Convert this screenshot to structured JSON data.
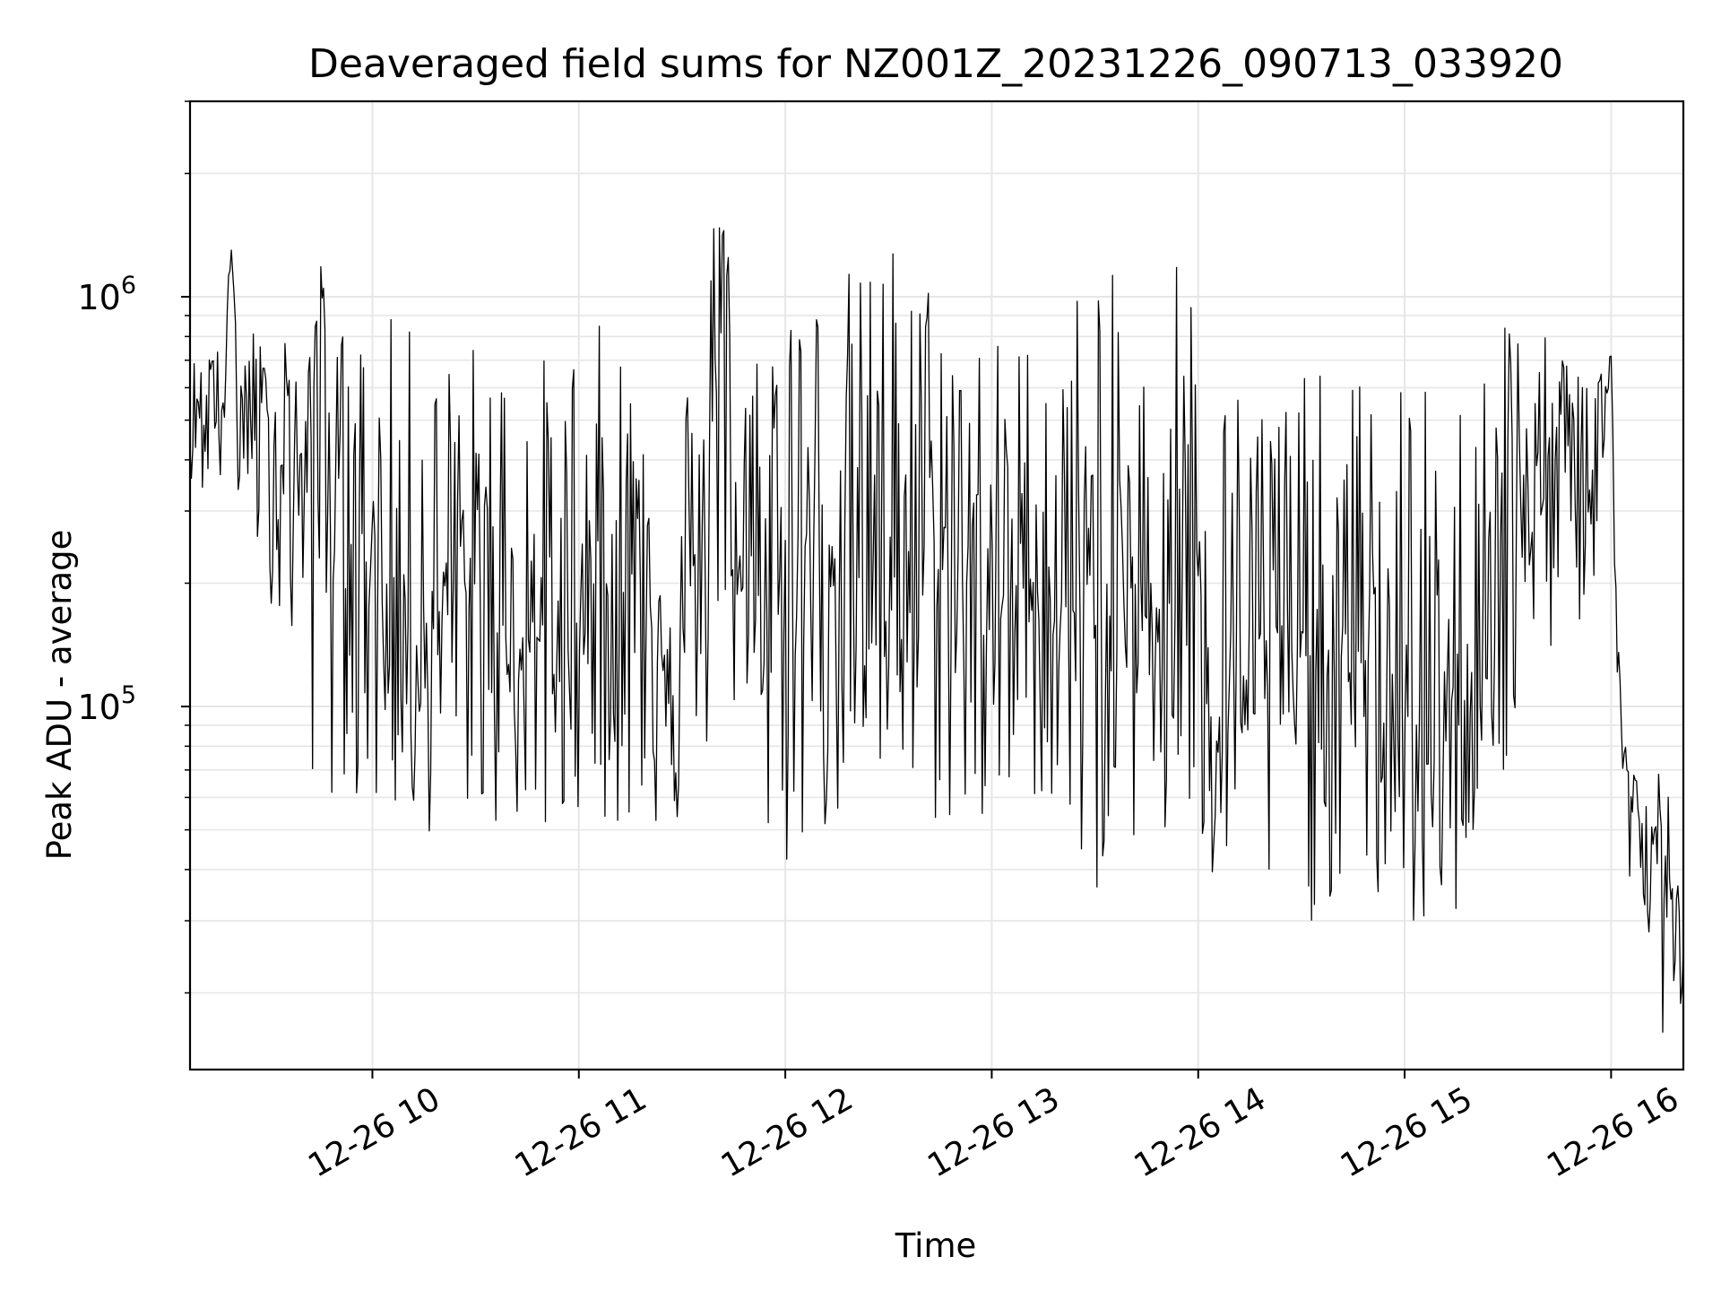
{
  "chart_data": {
    "type": "line",
    "title": "Deaveraged field sums for NZ001Z_20231226_090713_033920",
    "xlabel": "Time",
    "ylabel": "Peak ADU - average",
    "yscale": "log",
    "xlim": [
      "2023-12-26 09:07",
      "2023-12-26 16:21"
    ],
    "ylim": [
      13000,
      3000000
    ],
    "grid": true,
    "line_color": "#000000",
    "x_ticks": [
      {
        "value": "2023-12-26 10:00",
        "label": "12-26 10"
      },
      {
        "value": "2023-12-26 11:00",
        "label": "12-26 11"
      },
      {
        "value": "2023-12-26 12:00",
        "label": "12-26 12"
      },
      {
        "value": "2023-12-26 13:00",
        "label": "12-26 13"
      },
      {
        "value": "2023-12-26 14:00",
        "label": "12-26 14"
      },
      {
        "value": "2023-12-26 15:00",
        "label": "12-26 15"
      },
      {
        "value": "2023-12-26 16:00",
        "label": "12-26 16"
      }
    ],
    "y_ticks": [
      {
        "value": 100000,
        "base": "10",
        "exp": "5"
      },
      {
        "value": 1000000,
        "base": "10",
        "exp": "6"
      }
    ],
    "series": [
      {
        "x": [
          "2023-12-26 09:07",
          "2023-12-26 09:09",
          "2023-12-26 09:11",
          "2023-12-26 09:13",
          "2023-12-26 09:15",
          "2023-12-26 09:17",
          "2023-12-26 09:19",
          "2023-12-26 09:21",
          "2023-12-26 09:23",
          "2023-12-26 09:25",
          "2023-12-26 09:27",
          "2023-12-26 09:29",
          "2023-12-26 09:31",
          "2023-12-26 09:33",
          "2023-12-26 09:35",
          "2023-12-26 09:37",
          "2023-12-26 09:39",
          "2023-12-26 09:41",
          "2023-12-26 09:43",
          "2023-12-26 09:45",
          "2023-12-26 09:47",
          "2023-12-26 09:49",
          "2023-12-26 09:51",
          "2023-12-26 09:53",
          "2023-12-26 09:55",
          "2023-12-26 09:57",
          "2023-12-26 09:59",
          "2023-12-26 10:05",
          "2023-12-26 10:12",
          "2023-12-26 10:19",
          "2023-12-26 10:26",
          "2023-12-26 10:33",
          "2023-12-26 10:40",
          "2023-12-26 10:47",
          "2023-12-26 10:54",
          "2023-12-26 11:01",
          "2023-12-26 11:08",
          "2023-12-26 11:15",
          "2023-12-26 11:22",
          "2023-12-26 11:29",
          "2023-12-26 11:35",
          "2023-12-26 11:38",
          "2023-12-26 11:40",
          "2023-12-26 11:43",
          "2023-12-26 11:46",
          "2023-12-26 11:53",
          "2023-12-26 12:00",
          "2023-12-26 12:07",
          "2023-12-26 12:14",
          "2023-12-26 12:21",
          "2023-12-26 12:28",
          "2023-12-26 12:35",
          "2023-12-26 12:42",
          "2023-12-26 12:49",
          "2023-12-26 12:56",
          "2023-12-26 13:03",
          "2023-12-26 13:10",
          "2023-12-26 13:17",
          "2023-12-26 13:24",
          "2023-12-26 13:31",
          "2023-12-26 13:38",
          "2023-12-26 13:45",
          "2023-12-26 13:52",
          "2023-12-26 13:55",
          "2023-12-26 14:00",
          "2023-12-26 14:07",
          "2023-12-26 14:14",
          "2023-12-26 14:21",
          "2023-12-26 14:28",
          "2023-12-26 14:35",
          "2023-12-26 14:42",
          "2023-12-26 14:49",
          "2023-12-26 14:56",
          "2023-12-26 15:03",
          "2023-12-26 15:09",
          "2023-12-26 15:12",
          "2023-12-26 15:17",
          "2023-12-26 15:24",
          "2023-12-26 15:30",
          "2023-12-26 15:35",
          "2023-12-26 15:40",
          "2023-12-26 15:45",
          "2023-12-26 15:50",
          "2023-12-26 15:55",
          "2023-12-26 15:58",
          "2023-12-26 16:00",
          "2023-12-26 16:01",
          "2023-12-26 16:03",
          "2023-12-26 16:05",
          "2023-12-26 16:07",
          "2023-12-26 16:09",
          "2023-12-26 16:11",
          "2023-12-26 16:13",
          "2023-12-26 16:15",
          "2023-12-26 16:17",
          "2023-12-26 16:19",
          "2023-12-26 16:21"
        ],
        "y": [
          450000,
          620000,
          400000,
          700000,
          480000,
          580000,
          1300000,
          540000,
          420000,
          680000,
          560000,
          470000,
          450000,
          380000,
          520000,
          350000,
          400000,
          420000,
          410000,
          1150000,
          460000,
          330000,
          390000,
          300000,
          200000,
          350000,
          210000,
          180000,
          150000,
          160000,
          200000,
          180000,
          140000,
          150000,
          130000,
          170000,
          200000,
          220000,
          180000,
          140000,
          200000,
          260000,
          600000,
          1300000,
          200000,
          150000,
          220000,
          230000,
          260000,
          200000,
          250000,
          240000,
          230000,
          220000,
          200000,
          170000,
          210000,
          180000,
          170000,
          160000,
          190000,
          170000,
          180000,
          650000,
          150000,
          110000,
          120000,
          150000,
          140000,
          130000,
          120000,
          130000,
          110000,
          90000,
          60000,
          50000,
          120000,
          200000,
          260000,
          330000,
          350000,
          380000,
          400000,
          420000,
          560000,
          750000,
          200000,
          90000,
          58000,
          55000,
          52000,
          48000,
          42000,
          35000,
          30000,
          28000,
          26000
        ],
        "hi": [
          620000,
          780000,
          700000,
          900000,
          800000,
          900000,
          1300000,
          850000,
          700000,
          900000,
          800000,
          700000,
          750000,
          650000,
          1150000,
          700000,
          650000,
          700000,
          750000,
          1850000,
          800000,
          700000,
          850000,
          800000,
          650000,
          850000,
          600000,
          900000,
          850000,
          750000,
          780000,
          820000,
          850000,
          760000,
          700000,
          900000,
          850000,
          800000,
          750000,
          700000,
          900000,
          1000000,
          2400000,
          1800000,
          1000000,
          850000,
          1800000,
          1000000,
          1450000,
          1100000,
          1550000,
          1350000,
          1200000,
          1100000,
          950000,
          800000,
          850000,
          900000,
          1050000,
          1700000,
          750000,
          750000,
          900000,
          1700000,
          800000,
          650000,
          700000,
          650000,
          700000,
          650000,
          600000,
          700000,
          650000,
          700000,
          520000,
          450000,
          620000,
          1150000,
          1050000,
          850000,
          800000,
          780000,
          760000,
          780000,
          800000,
          780000,
          250000,
          110000,
          75000,
          70000,
          65000,
          60000,
          55000,
          140000,
          45000,
          40000,
          35000
        ],
        "lo": [
          350000,
          400000,
          300000,
          380000,
          320000,
          360000,
          380000,
          300000,
          250000,
          280000,
          200000,
          170000,
          180000,
          160000,
          160000,
          110000,
          140000,
          130000,
          50000,
          90000,
          60000,
          45000,
          65000,
          70000,
          55000,
          60000,
          50000,
          55000,
          45000,
          50000,
          55000,
          48000,
          52000,
          45000,
          42000,
          60000,
          50000,
          46000,
          50000,
          45000,
          60000,
          80000,
          100000,
          120000,
          60000,
          45000,
          38000,
          42000,
          50000,
          45000,
          55000,
          48000,
          50000,
          48000,
          45000,
          42000,
          60000,
          55000,
          33000,
          35000,
          48000,
          42000,
          40000,
          30000,
          35000,
          32000,
          36000,
          30000,
          28000,
          30000,
          35000,
          32000,
          30000,
          27000,
          22000,
          22000,
          35000,
          60000,
          50000,
          100000,
          120000,
          140000,
          150000,
          180000,
          200000,
          300000,
          100000,
          55000,
          35000,
          32000,
          30000,
          28000,
          25000,
          16000,
          22000,
          20000,
          18000
        ]
      }
    ]
  }
}
